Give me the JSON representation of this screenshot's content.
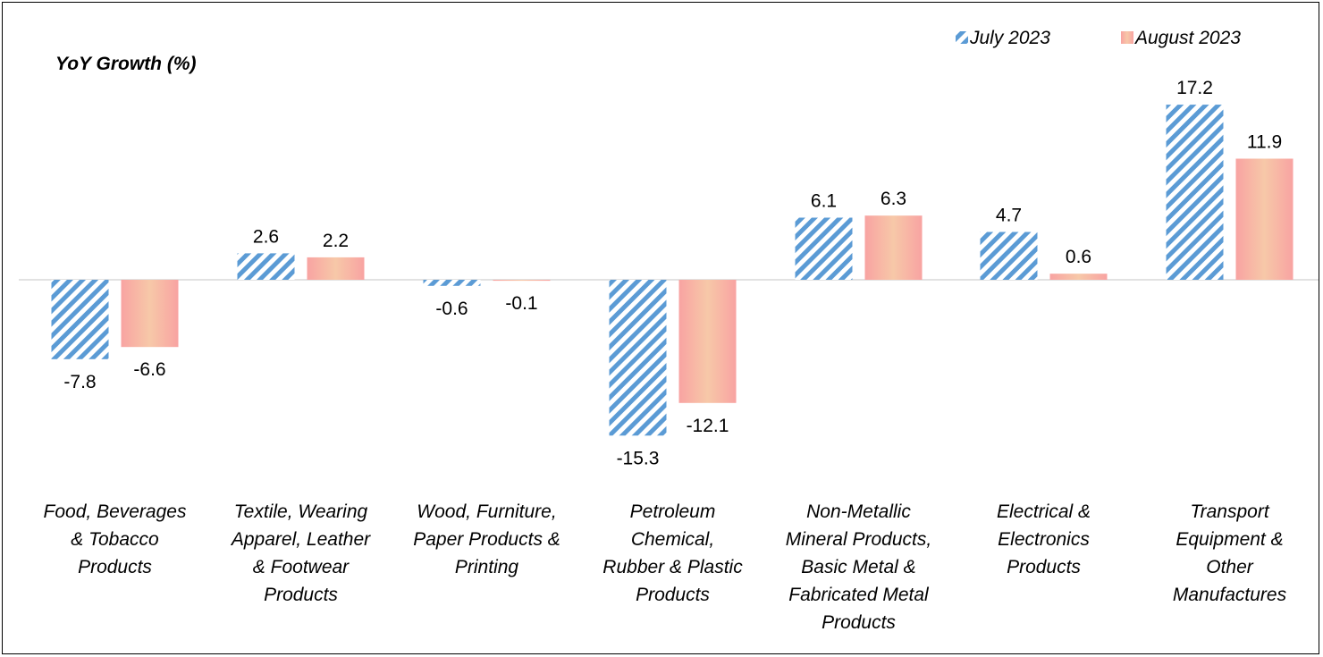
{
  "chart_data": {
    "type": "bar",
    "ylabel": "YoY Growth (%)",
    "categories": [
      [
        "Food, Beverages",
        "& Tobacco",
        "Products"
      ],
      [
        "Textile, Wearing",
        "Apparel, Leather",
        "& Footwear",
        "Products"
      ],
      [
        "Wood, Furniture,",
        "Paper Products &",
        "Printing"
      ],
      [
        "Petroleum",
        "Chemical,",
        "Rubber & Plastic",
        "Products"
      ],
      [
        "Non-Metallic",
        "Mineral Products,",
        "Basic Metal &",
        "Fabricated Metal",
        "Products"
      ],
      [
        "Electrical &",
        "Electronics",
        "Products"
      ],
      [
        "Transport",
        "Equipment &",
        "Other",
        "Manufactures"
      ]
    ],
    "series": [
      {
        "name": "July 2023",
        "values": [
          -7.8,
          2.6,
          -0.6,
          -15.3,
          6.1,
          4.7,
          17.2
        ],
        "labels": [
          "-7.8",
          "2.6",
          "-0.6",
          "-15.3",
          "6.1",
          "4.7",
          "17.2"
        ],
        "color": "#5b9bd5",
        "pattern": "diagonal-stripes"
      },
      {
        "name": "August 2023",
        "values": [
          -6.6,
          2.2,
          -0.1,
          -12.1,
          6.3,
          0.6,
          11.9
        ],
        "labels": [
          "-6.6",
          "2.2",
          "-0.1",
          "-12.1",
          "6.3",
          "0.6",
          "11.9"
        ],
        "color": "#f8a1a0",
        "pattern": "gradient"
      }
    ],
    "ylim": [
      -17,
      20
    ],
    "grid": false,
    "legend": "top-right",
    "data_labels": true
  }
}
